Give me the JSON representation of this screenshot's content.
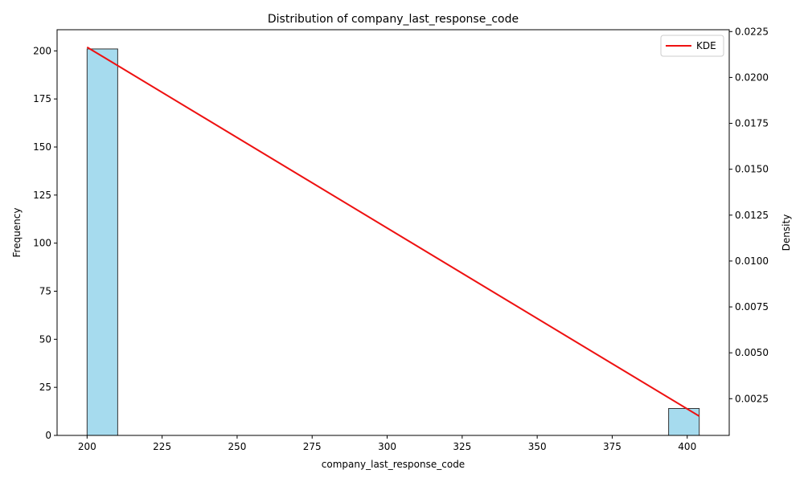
{
  "chart_data": {
    "type": "bar",
    "title": "Distribution of company_last_response_code",
    "xlabel": "company_last_response_code",
    "ylabel": "Frequency",
    "y2label": "Density",
    "xlim": [
      190,
      414
    ],
    "ylim": [
      0,
      211
    ],
    "y2lim": [
      0.0005,
      0.0226
    ],
    "x_ticks": [
      200,
      225,
      250,
      275,
      300,
      325,
      350,
      375,
      400
    ],
    "y_ticks": [
      0,
      25,
      50,
      75,
      100,
      125,
      150,
      175,
      200
    ],
    "y2_ticks": [
      0.0025,
      0.005,
      0.0075,
      0.01,
      0.0125,
      0.015,
      0.0175,
      0.02,
      0.0225
    ],
    "y2_tick_labels": [
      "0.0025",
      "0.0050",
      "0.0075",
      "0.0100",
      "0.0125",
      "0.0150",
      "0.0175",
      "0.0200",
      "0.0225"
    ],
    "bins": [
      {
        "start": 200,
        "end": 210.2,
        "count": 201
      },
      {
        "start": 393.8,
        "end": 404,
        "count": 14
      }
    ],
    "bar_color": "#a6dbee",
    "bar_edge_color": "#333333",
    "kde": {
      "name": "KDE",
      "color": "#ee1111",
      "x": [
        200,
        404
      ],
      "y": [
        0.02165,
        0.00155
      ]
    },
    "legend": {
      "label": "KDE",
      "position": "top-right"
    }
  }
}
